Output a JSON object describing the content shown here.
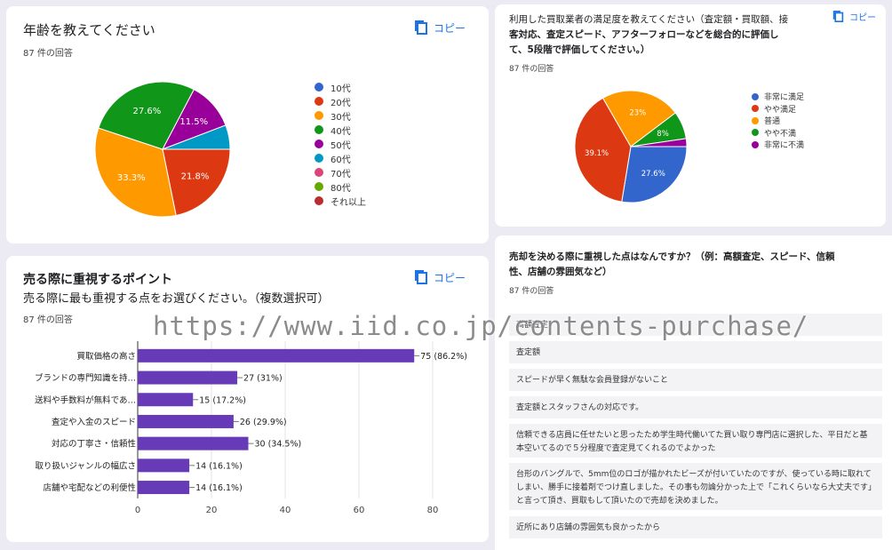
{
  "age_card": {
    "title": "年齢を教えてください",
    "responses": "87 件の回答",
    "copy": "コピー",
    "chart_data": {
      "type": "pie",
      "categories": [
        "10代",
        "20代",
        "30代",
        "40代",
        "50代",
        "60代",
        "70代",
        "80代",
        "それ以上"
      ],
      "colors": [
        "#3366cc",
        "#dc3912",
        "#ff9900",
        "#109618",
        "#990099",
        "#0099c6",
        "#dd4477",
        "#66aa00",
        "#b82e2e"
      ],
      "values": [
        0,
        21.8,
        33.3,
        27.6,
        11.5,
        5.8,
        0,
        0,
        0
      ],
      "labels": [
        "",
        "21.8%",
        "33.3%",
        "27.6%",
        "11.5%",
        "",
        "",
        "",
        ""
      ],
      "legend": "right"
    }
  },
  "satisfaction_card": {
    "title_line1": "利用した買取業者の満足度を教えてください（査定額・買取額、接",
    "title_line2": "客対応、査定スピード、アフターフォローなどを総合的に評価し",
    "title_line3": "て、5段階で評価してください。）",
    "responses": "87 件の回答",
    "copy": "コピー",
    "chart_data": {
      "type": "pie",
      "categories": [
        "非常に満足",
        "やや満足",
        "普通",
        "やや不満",
        "非常に不満"
      ],
      "colors": [
        "#3366cc",
        "#dc3912",
        "#ff9900",
        "#109618",
        "#990099"
      ],
      "values": [
        27.6,
        39.1,
        23,
        8,
        2.3
      ],
      "labels": [
        "27.6%",
        "39.1%",
        "23%",
        "8%",
        ""
      ],
      "legend": "right"
    }
  },
  "points_card": {
    "title": "売る際に重視するポイント",
    "subtitle": "売る際に最も重視する点をお選びください。（複数選択可）",
    "responses": "87 件の回答",
    "copy": "コピー",
    "chart_data": {
      "type": "bar",
      "orientation": "horizontal",
      "categories": [
        "買取価格の高さ",
        "ブランドの専門知識を持…",
        "送料や手数料が無料であ…",
        "査定や入金のスピード",
        "対応の丁寧さ・信頼性",
        "取り扱いジャンルの幅広さ",
        "店舗や宅配などの利便性"
      ],
      "values": [
        75,
        27,
        15,
        26,
        30,
        14,
        14
      ],
      "labels": [
        "75 (86.2%)",
        "27 (31%)",
        "15 (17.2%)",
        "26 (29.9%)",
        "30 (34.5%)",
        "14 (16.1%)",
        "14 (16.1%)"
      ],
      "xlim": [
        0,
        80
      ],
      "xticks": [
        "0",
        "20",
        "40",
        "60",
        "80"
      ],
      "color": "#673ab7",
      "grid": true
    }
  },
  "decision_card": {
    "title_line1": "売却を決める際に重視した点はなんですか？（例：高額査定、スピード、信頼",
    "title_line2": "性、店舗の雰囲気など）",
    "responses": "87 件の回答",
    "answers": [
      "高額査定",
      "査定額",
      "スピードが早く無駄な会員登録がないこと",
      "査定額とスタッフさんの対応です。",
      "信頼できる店員に任せたいと思ったため学生時代働いてた買い取り専門店に選択した、平日だと基本空いてるので５分程度で査定見てくれるのでよかった",
      "台形のバングルで、5mm位のロゴが描かれたビーズが付いていたのですが、使っている時に取れてしまい、勝手に接着剤でつけ直しました。その事も勿論分かった上で「これくらいなら大丈夫です」と言って頂き、買取もして頂いたので売却を決めました。",
      "近所にあり店舗の雰囲気も良かったから"
    ]
  },
  "watermark": "https://www.iid.co.jp/contents-purchase/"
}
